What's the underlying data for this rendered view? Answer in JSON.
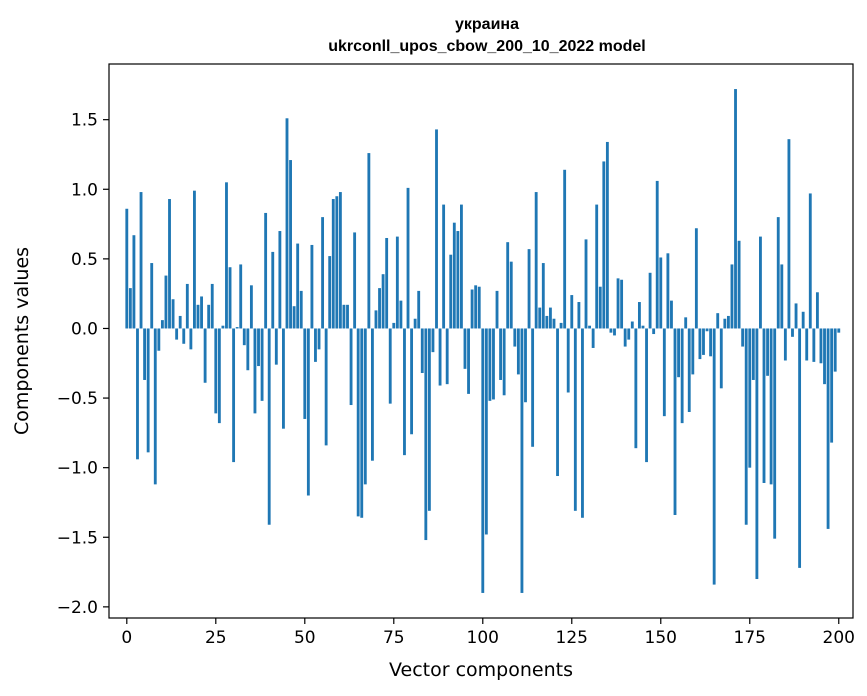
{
  "chart_data": {
    "type": "bar",
    "title": "украина",
    "subtitle": "ukrconll_upos_cbow_200_10_2022 model",
    "xlabel": "Vector components",
    "ylabel": "Components values",
    "xlim": [
      -5,
      204
    ],
    "ylim": [
      -2.08,
      1.9
    ],
    "xticks": [
      0,
      25,
      50,
      75,
      100,
      125,
      150,
      175,
      200
    ],
    "yticks": [
      -2.0,
      -1.5,
      -1.0,
      -0.5,
      0.0,
      0.5,
      1.0,
      1.5
    ],
    "ytick_labels": [
      "−2.0",
      "−1.5",
      "−1.0",
      "−0.5",
      "0.0",
      "0.5",
      "1.0",
      "1.5"
    ],
    "grid": false,
    "color": "#1f77b4",
    "values": [
      0.86,
      0.29,
      0.67,
      -0.94,
      0.98,
      -0.37,
      -0.89,
      0.47,
      -1.12,
      -0.16,
      0.06,
      0.38,
      0.93,
      0.21,
      -0.08,
      0.09,
      -0.11,
      0.32,
      -0.15,
      0.99,
      0.17,
      0.23,
      -0.39,
      0.17,
      0.32,
      -0.61,
      -0.68,
      0.02,
      1.05,
      0.44,
      -0.96,
      0.01,
      0.46,
      -0.12,
      -0.3,
      0.31,
      -0.61,
      -0.27,
      -0.52,
      0.83,
      -1.41,
      0.55,
      -0.26,
      0.7,
      -0.72,
      1.51,
      1.21,
      0.16,
      0.61,
      0.27,
      -0.65,
      -1.2,
      0.6,
      -0.24,
      -0.15,
      0.8,
      -0.84,
      0.52,
      0.93,
      0.95,
      0.98,
      0.17,
      0.17,
      -0.55,
      0.69,
      -1.35,
      -1.36,
      -1.12,
      1.26,
      -0.95,
      0.13,
      0.29,
      0.39,
      0.65,
      -0.54,
      0.04,
      0.66,
      0.2,
      -0.91,
      1.01,
      -0.76,
      0.07,
      0.27,
      -0.32,
      -1.52,
      -1.31,
      -0.17,
      1.43,
      -0.41,
      0.89,
      -0.4,
      0.53,
      0.76,
      0.7,
      0.89,
      -0.29,
      -0.47,
      0.28,
      0.31,
      0.3,
      -1.9,
      -1.48,
      -0.52,
      -0.51,
      0.27,
      -0.37,
      -0.48,
      0.62,
      0.48,
      -0.13,
      -0.33,
      -1.9,
      -0.53,
      0.57,
      -0.85,
      0.98,
      0.15,
      0.47,
      0.09,
      0.15,
      0.07,
      -1.06,
      0.04,
      1.14,
      -0.46,
      0.24,
      -1.31,
      0.19,
      -1.36,
      0.64,
      0.02,
      -0.14,
      0.89,
      0.3,
      1.2,
      1.34,
      -0.03,
      -0.05,
      0.36,
      0.35,
      -0.13,
      -0.08,
      0.05,
      -0.86,
      0.19,
      0.02,
      -0.96,
      0.4,
      -0.04,
      1.06,
      0.51,
      -0.63,
      0.54,
      0.2,
      -1.34,
      -0.35,
      -0.68,
      0.08,
      -0.6,
      -0.33,
      0.72,
      -0.22,
      -0.19,
      -0.02,
      -0.2,
      -1.84,
      0.11,
      -0.43,
      0.07,
      0.09,
      0.46,
      1.72,
      0.63,
      -0.13,
      -1.41,
      -1.0,
      -0.37,
      -1.8,
      0.66,
      -1.11,
      -0.34,
      -1.12,
      -1.51,
      0.8,
      0.46,
      -0.23,
      1.36,
      -0.06,
      0.18,
      -1.72,
      0.12,
      -0.23,
      0.97,
      -0.24,
      0.26,
      -0.25,
      -0.4,
      -1.44,
      -0.82,
      -0.31,
      -0.03
    ]
  }
}
